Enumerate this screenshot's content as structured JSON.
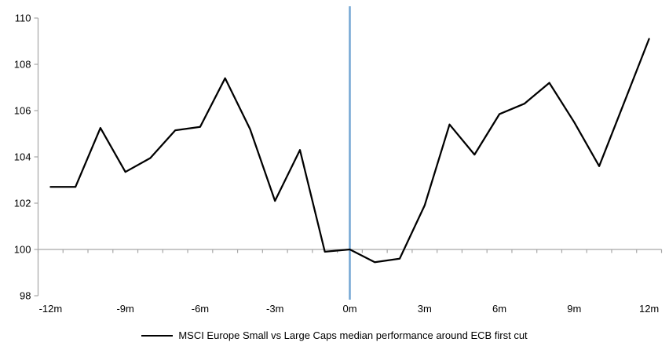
{
  "chart_data": {
    "type": "line",
    "x_months": [
      -12,
      -11,
      -10,
      -9,
      -8,
      -7,
      -6,
      -5,
      -4,
      -3,
      -2,
      -1,
      0,
      1,
      2,
      3,
      4,
      5,
      6,
      7,
      8,
      9,
      10,
      11,
      12
    ],
    "x_tick_labels": [
      "-12m",
      "-9m",
      "-6m",
      "-3m",
      "0m",
      "3m",
      "6m",
      "9m",
      "12m"
    ],
    "x_tick_label_months": [
      -12,
      -9,
      -6,
      -3,
      0,
      3,
      6,
      9,
      12
    ],
    "series": [
      {
        "name": "MSCI Europe Small vs Large Caps median performance around ECB first cut",
        "color": "#000000",
        "values": [
          102.7,
          102.7,
          105.25,
          103.35,
          103.95,
          105.15,
          105.3,
          107.4,
          105.2,
          102.1,
          104.3,
          99.9,
          100.0,
          99.45,
          99.6,
          101.9,
          105.4,
          104.1,
          105.85,
          106.3,
          107.2,
          105.5,
          103.6,
          106.35,
          109.1
        ]
      }
    ],
    "y_ticks": [
      98,
      100,
      102,
      104,
      106,
      108,
      110
    ],
    "ylim": [
      98,
      110
    ],
    "x_axis_crosses_at_y": 100,
    "event_line": {
      "at_month": 0,
      "color": "#74A6D4"
    },
    "axis_color": "#A6A6A6",
    "label_color": "#000000",
    "grid": "off",
    "legend_position": "bottom-center"
  }
}
